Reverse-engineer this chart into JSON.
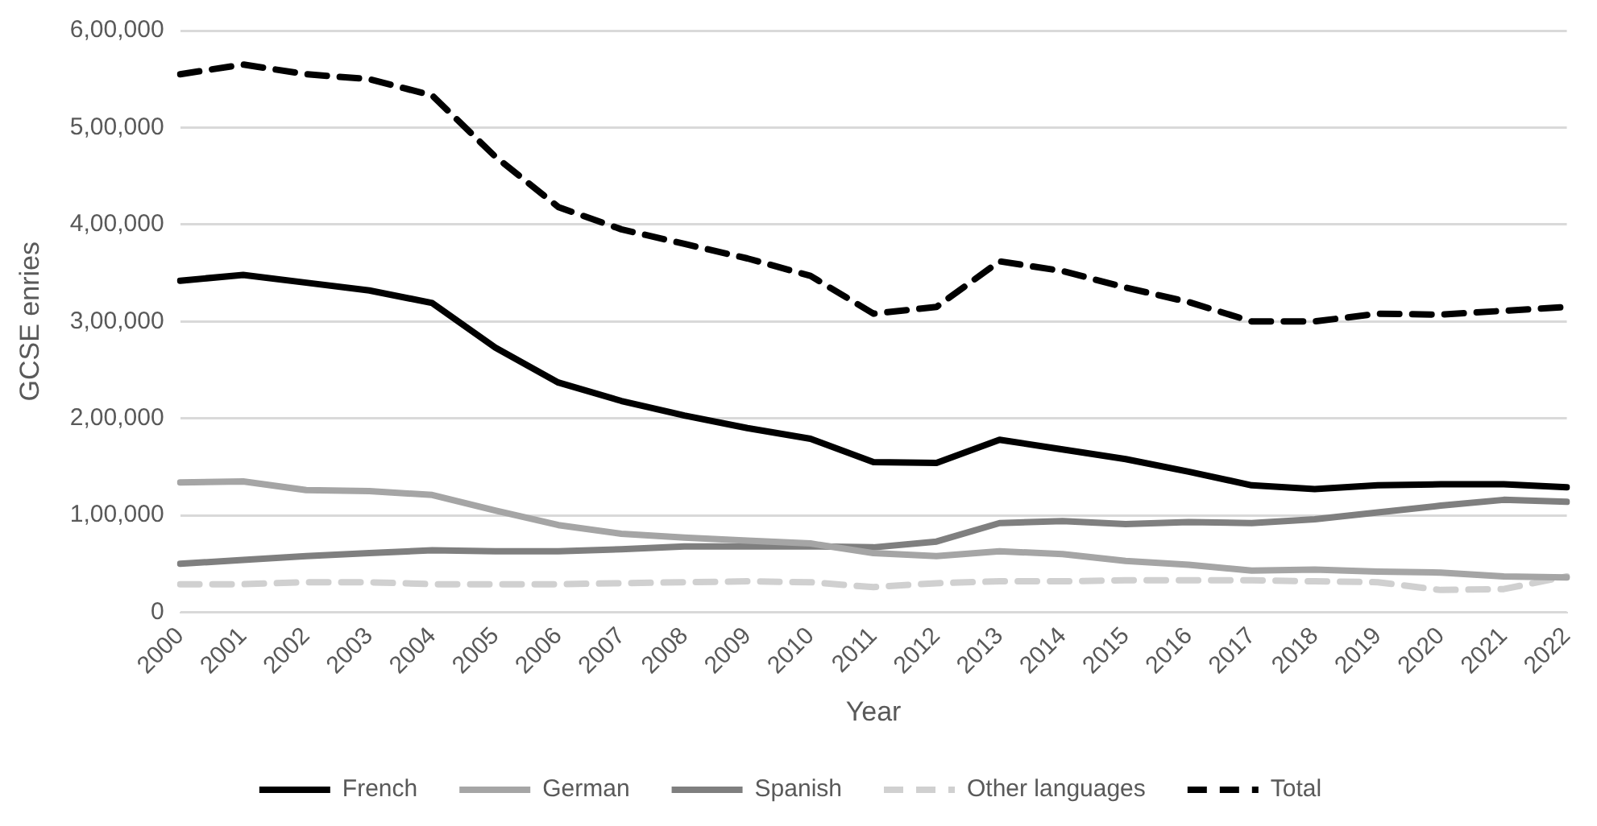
{
  "chart_data": {
    "type": "line",
    "xlabel": "Year",
    "ylabel": "GCSE enries",
    "categories": [
      "2000",
      "2001",
      "2002",
      "2003",
      "2004",
      "2005",
      "2006",
      "2007",
      "2008",
      "2009",
      "2010",
      "2011",
      "2012",
      "2013",
      "2014",
      "2015",
      "2016",
      "2017",
      "2018",
      "2019",
      "2020",
      "2021",
      "2022"
    ],
    "series": [
      {
        "name": "French",
        "color": "#000000",
        "line_style": "solid",
        "values": [
          342000,
          348000,
          340000,
          332000,
          319000,
          273000,
          237000,
          218000,
          203000,
          190000,
          179000,
          155000,
          154000,
          178000,
          168000,
          158000,
          145000,
          131000,
          127000,
          131000,
          132000,
          132000,
          129000
        ]
      },
      {
        "name": "German",
        "color": "#a5a5a5",
        "line_style": "solid",
        "values": [
          134000,
          135000,
          126000,
          125000,
          121000,
          105000,
          90000,
          81000,
          77000,
          74000,
          71000,
          61000,
          58000,
          63000,
          60000,
          53000,
          49000,
          43000,
          44000,
          42000,
          41000,
          37000,
          36000
        ]
      },
      {
        "name": "Spanish",
        "color": "#7f7f7f",
        "line_style": "solid",
        "values": [
          50000,
          54000,
          58000,
          61000,
          64000,
          63000,
          63000,
          65000,
          68000,
          68000,
          68000,
          67000,
          73000,
          92000,
          94000,
          91000,
          93000,
          92000,
          96000,
          103000,
          110000,
          116000,
          114000
        ]
      },
      {
        "name": "Other languages",
        "color": "#d0d0d0",
        "line_style": "dashed",
        "values": [
          29000,
          29000,
          31000,
          31000,
          29000,
          29000,
          29000,
          30000,
          31000,
          32000,
          31000,
          26000,
          30000,
          32000,
          32000,
          33000,
          33000,
          33000,
          32000,
          31000,
          23000,
          24000,
          37000
        ]
      },
      {
        "name": "Total",
        "color": "#000000",
        "line_style": "dashed",
        "values": [
          555000,
          565000,
          555000,
          550000,
          533000,
          470000,
          418000,
          395000,
          380000,
          365000,
          347000,
          308000,
          315000,
          362000,
          352000,
          335000,
          320000,
          300000,
          300000,
          308000,
          307000,
          311000,
          315000
        ]
      }
    ],
    "ylim": [
      0,
      600000
    ],
    "yticks": [
      0,
      {
        "value": 100000,
        "label": "1,00,000"
      },
      {
        "value": 200000,
        "label": "2,00,000"
      },
      {
        "value": 300000,
        "label": "3,00,000"
      },
      {
        "value": 400000,
        "label": "4,00,000"
      },
      {
        "value": 500000,
        "label": "5,00,000"
      },
      {
        "value": 600000,
        "label": "6,00,000"
      }
    ],
    "grid": "y",
    "legend": "bottom",
    "marker": "none"
  }
}
